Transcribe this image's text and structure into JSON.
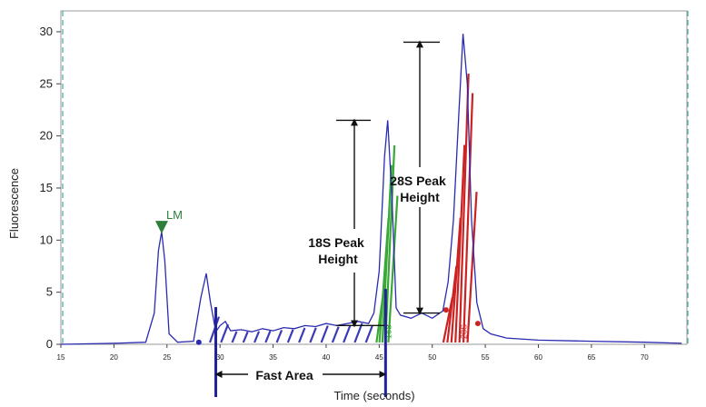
{
  "chart_data": {
    "type": "line",
    "xlabel": "Time (seconds)",
    "ylabel": "Fluorescence",
    "xlim": [
      15,
      74
    ],
    "ylim": [
      0,
      32
    ],
    "x_ticks": [
      15,
      20,
      25,
      30,
      35,
      40,
      45,
      50,
      55,
      60,
      65,
      70
    ],
    "y_ticks": [
      0,
      5,
      10,
      15,
      20,
      25,
      30
    ],
    "grid": false,
    "series": [
      {
        "color": "#2a2ab0",
        "x": [
          15.0,
          20.0,
          23.0,
          23.8,
          24.2,
          24.5,
          24.8,
          25.2,
          26.0,
          27.5,
          28.2,
          28.7,
          29.1,
          29.6,
          30.0,
          30.5,
          31.0,
          32.0,
          33.0,
          34.0,
          35.0,
          36.0,
          37.0,
          38.0,
          39.0,
          40.0,
          41.0,
          42.0,
          43.0,
          44.0,
          44.5,
          45.0,
          45.5,
          45.8,
          46.2,
          46.6,
          47.0,
          48.0,
          49.0,
          50.0,
          51.0,
          51.5,
          52.0,
          52.5,
          52.9,
          53.3,
          53.7,
          54.2,
          54.8,
          55.5,
          57.0,
          60.0,
          65.0,
          70.0,
          73.5
        ],
        "y": [
          0.0,
          0.1,
          0.2,
          3.0,
          9.0,
          10.8,
          8.0,
          1.0,
          0.2,
          0.3,
          4.5,
          6.8,
          4.0,
          1.2,
          1.8,
          2.2,
          1.3,
          1.4,
          1.2,
          1.5,
          1.3,
          1.6,
          1.5,
          1.8,
          1.7,
          2.0,
          1.8,
          2.0,
          2.2,
          2.0,
          3.0,
          7.0,
          18.0,
          21.5,
          14.0,
          3.5,
          2.8,
          2.5,
          3.0,
          2.5,
          3.2,
          6.0,
          12.0,
          22.0,
          29.8,
          25.0,
          12.0,
          4.0,
          1.5,
          1.0,
          0.6,
          0.4,
          0.3,
          0.2,
          0.1
        ]
      }
    ],
    "markers": [
      {
        "label": "LM",
        "x": 24.5,
        "y": 10.8
      }
    ],
    "peak_labels": [
      {
        "label": "18S",
        "x": 45.8,
        "color": "#2e9e2e"
      },
      {
        "label": "28S",
        "x": 52.9,
        "color": "#cc2222"
      }
    ],
    "annotations": [
      {
        "label": "18S Peak Height"
      },
      {
        "label": "28S Peak Height"
      },
      {
        "label": "Fast Area"
      }
    ]
  }
}
